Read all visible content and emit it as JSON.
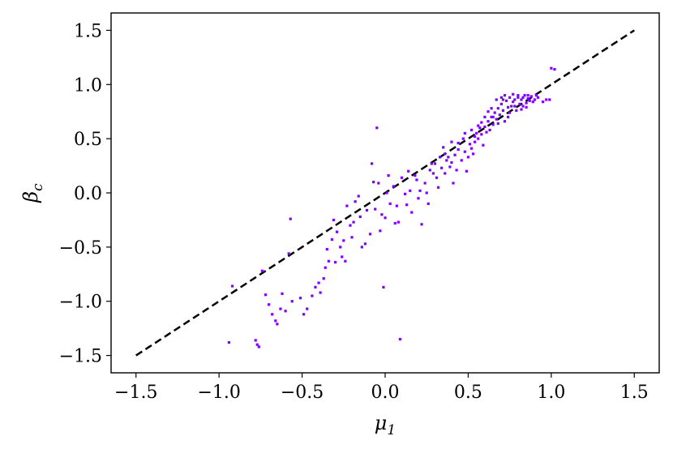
{
  "chart_data": {
    "type": "scatter",
    "title": "",
    "xlabel": "μ₁",
    "ylabel": "β_c",
    "xlabel_main": "μ",
    "xlabel_sub": "1",
    "ylabel_main": "β",
    "ylabel_sub": "c",
    "xlim": [
      -1.65,
      1.65
    ],
    "ylim": [
      -1.66,
      1.66
    ],
    "xticks": [
      -1.5,
      -1.0,
      -0.5,
      0.0,
      0.5,
      1.0,
      1.5
    ],
    "yticks": [
      -1.5,
      -1.0,
      -0.5,
      0.0,
      0.5,
      1.0,
      1.5
    ],
    "xtick_labels": [
      "−1.5",
      "−1.0",
      "−0.5",
      "0.0",
      "0.5",
      "1.0",
      "1.5"
    ],
    "ytick_labels": [
      "−1.5",
      "−1.0",
      "−0.5",
      "0.0",
      "0.5",
      "1.0",
      "1.5"
    ],
    "grid": false,
    "legend": "none",
    "point_color": "#8000ff",
    "reference_line": {
      "x": [
        -1.5,
        1.5
      ],
      "y": [
        -1.5,
        1.5
      ],
      "style": "dashed",
      "color": "#000000"
    },
    "series": [
      {
        "points": [
          [
            -0.94,
            -1.38
          ],
          [
            -0.92,
            -0.86
          ],
          [
            -0.78,
            -1.36
          ],
          [
            -0.77,
            -1.4
          ],
          [
            -0.76,
            -1.42
          ],
          [
            -0.74,
            -0.72
          ],
          [
            -0.72,
            -0.94
          ],
          [
            -0.7,
            -1.03
          ],
          [
            -0.68,
            -1.12
          ],
          [
            -0.66,
            -1.18
          ],
          [
            -0.65,
            -1.21
          ],
          [
            -0.63,
            -1.07
          ],
          [
            -0.62,
            -0.93
          ],
          [
            -0.6,
            -1.09
          ],
          [
            -0.58,
            -0.56
          ],
          [
            -0.56,
            -1.0
          ],
          [
            -0.57,
            -0.24
          ],
          [
            -0.51,
            -0.97
          ],
          [
            -0.49,
            -1.12
          ],
          [
            -0.47,
            -1.07
          ],
          [
            -0.44,
            -0.95
          ],
          [
            -0.42,
            -0.87
          ],
          [
            -0.4,
            -0.83
          ],
          [
            -0.39,
            -0.92
          ],
          [
            -0.37,
            -0.79
          ],
          [
            -0.36,
            -0.69
          ],
          [
            -0.35,
            -0.52
          ],
          [
            -0.34,
            -0.63
          ],
          [
            -0.32,
            -0.43
          ],
          [
            -0.31,
            -0.25
          ],
          [
            -0.3,
            -0.64
          ],
          [
            -0.29,
            -0.36
          ],
          [
            -0.27,
            -0.5
          ],
          [
            -0.26,
            -0.59
          ],
          [
            -0.25,
            -0.44
          ],
          [
            -0.24,
            -0.63
          ],
          [
            -0.23,
            -0.12
          ],
          [
            -0.21,
            -0.3
          ],
          [
            -0.2,
            -0.41
          ],
          [
            -0.19,
            -0.27
          ],
          [
            -0.18,
            -0.08
          ],
          [
            -0.16,
            -0.03
          ],
          [
            -0.15,
            -0.22
          ],
          [
            -0.14,
            -0.5
          ],
          [
            -0.12,
            -0.47
          ],
          [
            -0.11,
            -0.16
          ],
          [
            -0.09,
            -0.38
          ],
          [
            -0.08,
            0.27
          ],
          [
            -0.07,
            0.1
          ],
          [
            -0.06,
            -0.15
          ],
          [
            -0.05,
            0.6
          ],
          [
            -0.04,
            0.09
          ],
          [
            -0.03,
            -0.35
          ],
          [
            -0.02,
            -0.2
          ],
          [
            -0.01,
            -0.87
          ],
          [
            0.0,
            -0.23
          ],
          [
            0.01,
            0.0
          ],
          [
            0.02,
            0.16
          ],
          [
            0.03,
            -0.1
          ],
          [
            0.05,
            0.06
          ],
          [
            0.06,
            -0.28
          ],
          [
            0.07,
            -0.12
          ],
          [
            0.08,
            -0.27
          ],
          [
            0.09,
            -1.35
          ],
          [
            0.1,
            0.14
          ],
          [
            0.12,
            -0.01
          ],
          [
            0.13,
            -0.11
          ],
          [
            0.14,
            0.2
          ],
          [
            0.15,
            0.02
          ],
          [
            0.16,
            -0.18
          ],
          [
            0.18,
            0.16
          ],
          [
            0.19,
            0.12
          ],
          [
            0.2,
            -0.05
          ],
          [
            0.21,
            0.02
          ],
          [
            0.22,
            -0.29
          ],
          [
            0.24,
            0.09
          ],
          [
            0.25,
            0.0
          ],
          [
            0.26,
            -0.1
          ],
          [
            0.27,
            0.21
          ],
          [
            0.28,
            0.27
          ],
          [
            0.29,
            0.18
          ],
          [
            0.3,
            0.27
          ],
          [
            0.31,
            0.14
          ],
          [
            0.32,
            0.05
          ],
          [
            0.33,
            0.33
          ],
          [
            0.34,
            0.23
          ],
          [
            0.35,
            0.42
          ],
          [
            0.36,
            0.18
          ],
          [
            0.37,
            0.3
          ],
          [
            0.38,
            0.33
          ],
          [
            0.39,
            0.24
          ],
          [
            0.4,
            0.28
          ],
          [
            0.41,
            0.09
          ],
          [
            0.42,
            0.35
          ],
          [
            0.43,
            0.21
          ],
          [
            0.44,
            0.4
          ],
          [
            0.46,
            0.3
          ],
          [
            0.47,
            0.5
          ],
          [
            0.48,
            0.38
          ],
          [
            0.49,
            0.2
          ],
          [
            0.5,
            0.33
          ],
          [
            0.51,
            0.45
          ],
          [
            0.52,
            0.41
          ],
          [
            0.53,
            0.36
          ],
          [
            0.54,
            0.47
          ],
          [
            0.55,
            0.55
          ],
          [
            0.56,
            0.5
          ],
          [
            0.57,
            0.6
          ],
          [
            0.58,
            0.54
          ],
          [
            0.59,
            0.44
          ],
          [
            0.6,
            0.61
          ],
          [
            0.61,
            0.56
          ],
          [
            0.62,
            0.66
          ],
          [
            0.63,
            0.58
          ],
          [
            0.64,
            0.7
          ],
          [
            0.65,
            0.63
          ],
          [
            0.66,
            0.74
          ],
          [
            0.67,
            0.68
          ],
          [
            0.68,
            0.78
          ],
          [
            0.69,
            0.72
          ],
          [
            0.7,
            0.82
          ],
          [
            0.71,
            0.76
          ],
          [
            0.72,
            0.66
          ],
          [
            0.73,
            0.85
          ],
          [
            0.74,
            0.79
          ],
          [
            0.75,
            0.88
          ],
          [
            0.76,
            0.8
          ],
          [
            0.77,
            0.84
          ],
          [
            0.78,
            0.86
          ],
          [
            0.79,
            0.76
          ],
          [
            0.8,
            0.88
          ],
          [
            0.81,
            0.82
          ],
          [
            0.82,
            0.86
          ],
          [
            0.83,
            0.8
          ],
          [
            0.84,
            0.9
          ],
          [
            0.85,
            0.83
          ],
          [
            0.86,
            0.87
          ],
          [
            0.87,
            0.85
          ],
          [
            0.88,
            0.89
          ],
          [
            0.9,
            0.86
          ],
          [
            0.92,
            0.88
          ],
          [
            0.95,
            0.84
          ],
          [
            0.97,
            0.86
          ],
          [
            0.99,
            0.86
          ],
          [
            1.0,
            1.15
          ],
          [
            1.02,
            1.14
          ],
          [
            0.62,
            0.75
          ],
          [
            0.65,
            0.7
          ],
          [
            0.68,
            0.64
          ],
          [
            0.7,
            0.88
          ],
          [
            0.72,
            0.9
          ],
          [
            0.74,
            0.7
          ],
          [
            0.77,
            0.91
          ],
          [
            0.8,
            0.9
          ],
          [
            0.83,
            0.88
          ],
          [
            0.86,
            0.9
          ],
          [
            0.58,
            0.65
          ],
          [
            0.6,
            0.7
          ],
          [
            0.56,
            0.62
          ],
          [
            0.64,
            0.78
          ],
          [
            0.67,
            0.86
          ],
          [
            0.71,
            0.86
          ],
          [
            0.75,
            0.74
          ],
          [
            0.78,
            0.8
          ],
          [
            0.82,
            0.77
          ],
          [
            0.85,
            0.79
          ],
          [
            0.89,
            0.84
          ],
          [
            0.91,
            0.9
          ],
          [
            0.48,
            0.55
          ],
          [
            0.52,
            0.58
          ],
          [
            0.54,
            0.52
          ],
          [
            0.44,
            0.46
          ],
          [
            0.4,
            0.47
          ],
          [
            0.36,
            0.36
          ]
        ]
      }
    ]
  }
}
